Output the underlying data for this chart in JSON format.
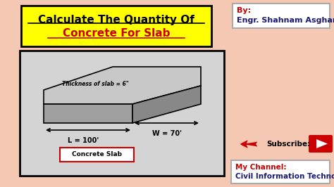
{
  "bg_color": "#f5c8b4",
  "title_line1": "Calculate The Quantity Of",
  "title_line2": "Concrete For Slab",
  "title_bg": "#ffff00",
  "title_border": "#000000",
  "title_line1_color": "#000000",
  "title_line2_color": "#cc0000",
  "by_text": "By:",
  "by_name": "Engr. Shahnam Asghar",
  "by_color_label": "#cc0000",
  "by_color_name": "#1a1a6e",
  "slab_top_color": "#c8c8c8",
  "slab_front_color": "#a0a0a0",
  "slab_side_color": "#888888",
  "slab_border": "#000000",
  "diagram_bg": "#d4d4d4",
  "diagram_border": "#000000",
  "label_thickness": "Thickness of slab = 6\"",
  "label_L": "L = 100'",
  "label_W": "W = 70'",
  "label_slab": "Concrete Slab",
  "subscribe_text": "Subscribe:",
  "channel_label": "My Channel:",
  "channel_name": "Civil Information Technology"
}
